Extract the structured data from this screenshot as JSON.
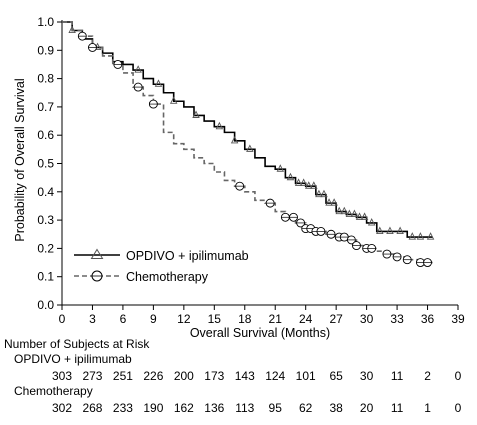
{
  "chart_data": {
    "type": "line",
    "subtype": "kaplan-meier",
    "xlabel": "Overall Survival (Months)",
    "ylabel": "Probability of Overall Survival",
    "xlim": [
      0,
      39
    ],
    "ylim": [
      0,
      1.0
    ],
    "x_ticks": [
      "0",
      "3",
      "6",
      "9",
      "12",
      "15",
      "18",
      "21",
      "24",
      "27",
      "30",
      "33",
      "36",
      "39"
    ],
    "y_ticks": [
      "0.0",
      "0.1",
      "0.2",
      "0.3",
      "0.4",
      "0.5",
      "0.6",
      "0.7",
      "0.8",
      "0.9",
      "1.0"
    ],
    "legend_position": "bottom-left",
    "series": [
      {
        "name": "OPDIVO + ipilimumab",
        "color": "#000000",
        "line_style": "solid",
        "marker": "triangle",
        "x": [
          0,
          1,
          2,
          3,
          4,
          5,
          6,
          7,
          8,
          9,
          10,
          11,
          12,
          13,
          14,
          15,
          16,
          17,
          18,
          19,
          20,
          21,
          22,
          23,
          24,
          25,
          26,
          27,
          28,
          29,
          30,
          31,
          32,
          33,
          34,
          35,
          36.5
        ],
        "y": [
          1.0,
          0.97,
          0.94,
          0.91,
          0.89,
          0.86,
          0.85,
          0.83,
          0.8,
          0.78,
          0.75,
          0.72,
          0.7,
          0.67,
          0.65,
          0.63,
          0.61,
          0.58,
          0.55,
          0.52,
          0.49,
          0.48,
          0.45,
          0.43,
          0.42,
          0.39,
          0.36,
          0.33,
          0.32,
          0.31,
          0.29,
          0.26,
          0.26,
          0.26,
          0.24,
          0.24,
          0.24
        ],
        "censor_x": [
          1,
          3.5,
          7.5,
          9.5,
          11,
          13.2,
          15.5,
          17,
          18.5,
          21.5,
          22.5,
          23.3,
          23.8,
          24.3,
          24.8,
          25.3,
          25.8,
          26.3,
          26.8,
          27.3,
          27.8,
          28.3,
          28.8,
          29.3,
          29.8,
          30.5,
          31.3,
          32.3,
          33.3,
          34.5,
          35.3,
          36.3
        ]
      },
      {
        "name": "Chemotherapy",
        "color": "#666666",
        "line_style": "dashed",
        "marker": "circle",
        "x": [
          0,
          1,
          2,
          3,
          4,
          5,
          6,
          7,
          8,
          9,
          10,
          11,
          12,
          13,
          14,
          15,
          16,
          17,
          18,
          19,
          20,
          21,
          22,
          23,
          24,
          25,
          26,
          27,
          28,
          29,
          30,
          31,
          32,
          33,
          34,
          35,
          36.5
        ],
        "y": [
          1.0,
          0.97,
          0.95,
          0.91,
          0.88,
          0.85,
          0.82,
          0.77,
          0.74,
          0.71,
          0.61,
          0.57,
          0.55,
          0.52,
          0.5,
          0.47,
          0.44,
          0.42,
          0.4,
          0.37,
          0.36,
          0.33,
          0.31,
          0.29,
          0.27,
          0.26,
          0.25,
          0.24,
          0.23,
          0.21,
          0.2,
          0.19,
          0.18,
          0.17,
          0.16,
          0.15,
          0.15
        ],
        "censor_x": [
          2,
          3,
          5.5,
          7.5,
          9,
          17.5,
          20.5,
          22,
          22.8,
          23.5,
          24,
          24.5,
          25,
          25.5,
          26.5,
          27.3,
          27.8,
          28.5,
          29,
          30,
          30.5,
          32,
          33,
          34,
          35.3,
          36
        ]
      }
    ]
  },
  "risk_table": {
    "title": "Number of Subjects at Risk",
    "rows": [
      {
        "label": "OPDIVO + ipilimumab",
        "values": [
          "303",
          "273",
          "251",
          "226",
          "200",
          "173",
          "143",
          "124",
          "101",
          "65",
          "30",
          "11",
          "2",
          "0"
        ]
      },
      {
        "label": "Chemotherapy",
        "values": [
          "302",
          "268",
          "233",
          "190",
          "162",
          "136",
          "113",
          "95",
          "62",
          "38",
          "20",
          "11",
          "1",
          "0"
        ]
      }
    ]
  }
}
